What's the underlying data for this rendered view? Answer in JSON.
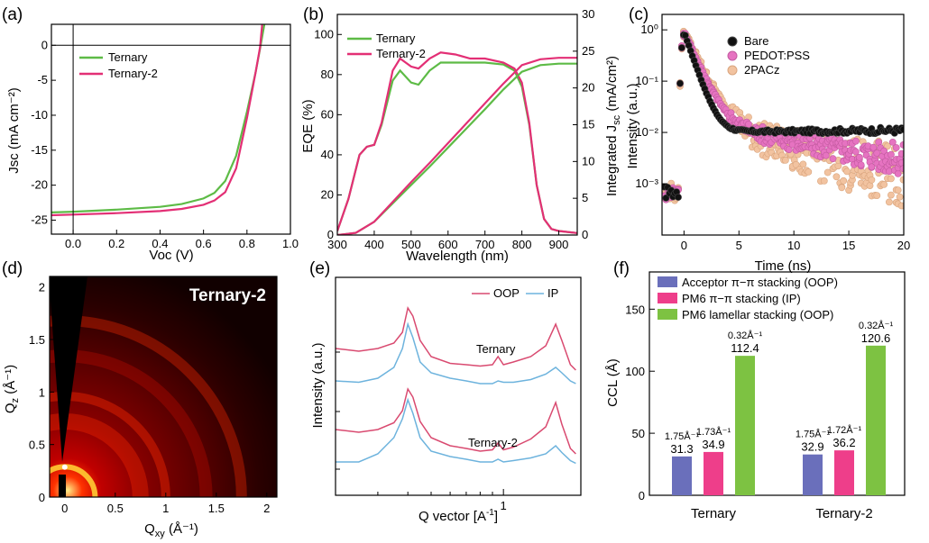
{
  "colors": {
    "green": "#5DBB46",
    "pink": "#E32F75",
    "blue_bar": "#6A6FBB",
    "pink_bar": "#EE3E8A",
    "green_bar": "#7DC242",
    "oop": "#D94A70",
    "ip": "#6DB3DD",
    "bare": "#111111",
    "pedot": "#E673C1",
    "pacz": "#F2C3A0"
  },
  "panels": {
    "a": {
      "tag": "(a)"
    },
    "b": {
      "tag": "(b)"
    },
    "c": {
      "tag": "(c)"
    },
    "d": {
      "tag": "(d)"
    },
    "e": {
      "tag": "(e)"
    },
    "f": {
      "tag": "(f)"
    }
  },
  "chart_data": [
    {
      "panel": "a",
      "type": "line",
      "xlabel": "Voc (V)",
      "ylabel": "Jsc (mA cm⁻²)",
      "xlim": [
        -0.1,
        1.0
      ],
      "ylim": [
        -27,
        3
      ],
      "x_ticks": [
        "0.0",
        "0.2",
        "0.4",
        "0.6",
        "0.8",
        "1.0"
      ],
      "y_ticks": [
        "0",
        "-5",
        "-10",
        "-15",
        "-20",
        "-25"
      ],
      "legend": "top-left",
      "series": [
        {
          "name": "Ternary",
          "x": [
            -0.1,
            0.0,
            0.2,
            0.4,
            0.5,
            0.6,
            0.65,
            0.7,
            0.75,
            0.8,
            0.84,
            0.86,
            0.88
          ],
          "y": [
            -23.9,
            -23.8,
            -23.5,
            -23.1,
            -22.7,
            -21.9,
            -21.1,
            -19.4,
            -15.8,
            -9.5,
            -3.8,
            -0.5,
            3.0
          ]
        },
        {
          "name": "Ternary-2",
          "x": [
            -0.1,
            0.0,
            0.2,
            0.4,
            0.5,
            0.6,
            0.65,
            0.7,
            0.75,
            0.8,
            0.84,
            0.86,
            0.87
          ],
          "y": [
            -24.3,
            -24.2,
            -24.0,
            -23.7,
            -23.4,
            -22.8,
            -22.2,
            -21.0,
            -17.6,
            -10.4,
            -3.8,
            -0.3,
            3.0
          ]
        }
      ]
    },
    {
      "panel": "b",
      "type": "line",
      "xlabel": "Wavelength (nm)",
      "ylabel": "EQE (%)",
      "y2label": "Integrated J",
      "y2label_sub": "sc",
      "y2label_tail": " (mA/cm²)",
      "xlim": [
        300,
        950
      ],
      "ylim": [
        0,
        110
      ],
      "y2lim": [
        0,
        30
      ],
      "x_ticks": [
        "300",
        "400",
        "500",
        "600",
        "700",
        "800",
        "900"
      ],
      "y_ticks": [
        "0",
        "20",
        "40",
        "60",
        "80",
        "100"
      ],
      "y2_ticks": [
        "0",
        "5",
        "10",
        "15",
        "20",
        "25",
        "30"
      ],
      "legend": "top-left",
      "series": [
        {
          "name": "Ternary",
          "axis": "left",
          "x": [
            300,
            330,
            360,
            380,
            400,
            420,
            450,
            470,
            500,
            520,
            550,
            580,
            620,
            660,
            700,
            750,
            780,
            800,
            820,
            840,
            860,
            880,
            900,
            950
          ],
          "y": [
            2,
            18,
            40,
            44,
            45,
            55,
            77,
            82,
            76,
            75,
            82,
            86,
            86,
            86,
            86,
            85,
            82,
            74,
            55,
            25,
            8,
            3,
            2,
            1
          ]
        },
        {
          "name": "Ternary-2",
          "axis": "left",
          "x": [
            300,
            330,
            360,
            380,
            400,
            420,
            450,
            470,
            500,
            520,
            550,
            580,
            620,
            660,
            700,
            750,
            780,
            800,
            820,
            840,
            860,
            880,
            900,
            950
          ],
          "y": [
            2,
            18,
            40,
            44,
            45,
            56,
            82,
            88,
            84,
            83,
            88,
            91,
            90,
            88,
            88,
            86,
            83,
            76,
            56,
            25,
            8,
            3,
            2,
            1
          ]
        },
        {
          "name": "Ternary (integrated)",
          "axis": "right",
          "x": [
            300,
            350,
            400,
            450,
            500,
            550,
            600,
            650,
            700,
            750,
            800,
            850,
            900,
            950
          ],
          "y": [
            0,
            0.3,
            1.8,
            4.3,
            6.8,
            9.3,
            11.9,
            14.5,
            17.1,
            19.8,
            22.2,
            23.1,
            23.3,
            23.3
          ]
        },
        {
          "name": "Ternary-2 (integrated)",
          "axis": "right",
          "x": [
            300,
            350,
            400,
            450,
            500,
            550,
            600,
            650,
            700,
            750,
            800,
            850,
            900,
            950
          ],
          "y": [
            0,
            0.3,
            1.8,
            4.5,
            7.2,
            9.8,
            12.5,
            15.2,
            17.9,
            20.6,
            23.1,
            23.9,
            24.1,
            24.1
          ]
        }
      ]
    },
    {
      "panel": "c",
      "type": "scatter",
      "xlabel": "Time (ns)",
      "ylabel": "Intensity (a.u.)",
      "xlim": [
        -2,
        20
      ],
      "ylim_log": [
        0.0001,
        2
      ],
      "y_scale": "log",
      "x_ticks": [
        "0",
        "5",
        "10",
        "15",
        "20"
      ],
      "y_ticks": [
        "10⁻³",
        "10⁻²",
        "10⁻¹",
        "10⁰"
      ],
      "legend": "top-right",
      "series": [
        {
          "name": "Bare",
          "decay": {
            "a1": 0.9,
            "t1": 0.7,
            "a2": 0.01,
            "floor_end": 0.011
          }
        },
        {
          "name": "PEDOT:PSS",
          "decay": {
            "a1": 0.9,
            "t1": 0.9,
            "a2": 0.018,
            "t2": 8,
            "floor_end": 0.0025
          }
        },
        {
          "name": "2PACz",
          "decay": {
            "a1": 0.9,
            "t1": 1.0,
            "a2": 0.02,
            "t2": 6,
            "floor_end": 0.0012
          }
        }
      ]
    },
    {
      "panel": "d",
      "type": "heatmap",
      "title": "Ternary-2",
      "xlabel": "Q",
      "xlabel_sub": "xy",
      "xlabel_tail": " (Å⁻¹)",
      "ylabel": "Q",
      "ylabel_sub": "z",
      "ylabel_tail": " (Å⁻¹)",
      "xlim": [
        -0.15,
        2.1
      ],
      "ylim": [
        0,
        2.1
      ],
      "x_ticks": [
        "0",
        "0.5",
        "1",
        "1.5",
        "2"
      ],
      "y_ticks": [
        "0",
        "0.5",
        "1",
        "1.5",
        "2"
      ],
      "rings_q": [
        0.3,
        0.75,
        1.0,
        1.4,
        1.75
      ]
    },
    {
      "panel": "e",
      "type": "line",
      "xlabel": "Q vector [A",
      "xlabel_sup": "-1",
      "xlabel_tail": "]",
      "ylabel": "Intensity (a.u.)",
      "x_scale": "log",
      "x_ticks": [
        "1"
      ],
      "legend": "top-right",
      "annotations": [
        "Ternary",
        "Ternary-2"
      ],
      "series": [
        {
          "name": "OOP",
          "group": "Ternary",
          "x": [
            0.2,
            0.25,
            0.3,
            0.35,
            0.38,
            0.4,
            0.42,
            0.45,
            0.5,
            0.6,
            0.7,
            0.8,
            0.9,
            0.95,
            1.0,
            1.1,
            1.3,
            1.5,
            1.65,
            1.75,
            1.9,
            2.0
          ],
          "y": [
            0.62,
            0.6,
            0.62,
            0.66,
            0.74,
            0.92,
            0.86,
            0.68,
            0.56,
            0.51,
            0.5,
            0.49,
            0.5,
            0.56,
            0.5,
            0.52,
            0.56,
            0.64,
            0.8,
            0.68,
            0.5,
            0.46
          ]
        },
        {
          "name": "IP",
          "group": "Ternary",
          "x": [
            0.2,
            0.25,
            0.3,
            0.35,
            0.38,
            0.4,
            0.42,
            0.45,
            0.5,
            0.6,
            0.7,
            0.8,
            0.9,
            0.95,
            1.0,
            1.1,
            1.3,
            1.5,
            1.65,
            1.75,
            1.9,
            2.0
          ],
          "y": [
            0.38,
            0.37,
            0.4,
            0.48,
            0.62,
            0.8,
            0.7,
            0.52,
            0.44,
            0.4,
            0.38,
            0.36,
            0.36,
            0.38,
            0.37,
            0.37,
            0.39,
            0.43,
            0.48,
            0.44,
            0.38,
            0.36
          ]
        },
        {
          "name": "OOP",
          "group": "Ternary-2",
          "x": [
            0.2,
            0.25,
            0.3,
            0.35,
            0.38,
            0.4,
            0.42,
            0.45,
            0.5,
            0.6,
            0.7,
            0.8,
            0.9,
            0.95,
            1.0,
            1.1,
            1.3,
            1.5,
            1.65,
            1.75,
            1.9,
            2.0
          ],
          "y": [
            0.62,
            0.6,
            0.62,
            0.67,
            0.76,
            0.92,
            0.86,
            0.68,
            0.56,
            0.5,
            0.48,
            0.46,
            0.47,
            0.52,
            0.47,
            0.49,
            0.55,
            0.64,
            0.82,
            0.66,
            0.48,
            0.44
          ]
        },
        {
          "name": "IP",
          "group": "Ternary-2",
          "x": [
            0.2,
            0.25,
            0.3,
            0.35,
            0.38,
            0.4,
            0.42,
            0.45,
            0.5,
            0.6,
            0.7,
            0.8,
            0.9,
            0.95,
            1.0,
            1.1,
            1.3,
            1.5,
            1.65,
            1.75,
            1.9,
            2.0
          ],
          "y": [
            0.38,
            0.38,
            0.44,
            0.56,
            0.7,
            0.84,
            0.74,
            0.56,
            0.46,
            0.42,
            0.4,
            0.38,
            0.38,
            0.4,
            0.38,
            0.39,
            0.41,
            0.44,
            0.5,
            0.45,
            0.39,
            0.37
          ]
        }
      ]
    },
    {
      "panel": "f",
      "type": "bar",
      "ylabel": "CCL (Å)",
      "ylim": [
        0,
        180
      ],
      "y_ticks": [
        "0",
        "50",
        "100",
        "150"
      ],
      "categories": [
        "Ternary",
        "Ternary-2"
      ],
      "legend": "top-left",
      "series": [
        {
          "name": "Acceptor π−π stacking (OOP)",
          "values": [
            31.3,
            32.9
          ],
          "peak_labels": [
            "1.75Å⁻¹",
            "1.75Å⁻¹"
          ]
        },
        {
          "name": "PM6 π−π stacking (IP)",
          "values": [
            34.9,
            36.2
          ],
          "peak_labels": [
            "1.73Å⁻¹",
            "1.72Å⁻¹"
          ]
        },
        {
          "name": "PM6 lamellar stacking (OOP)",
          "values": [
            112.4,
            120.6
          ],
          "peak_labels": [
            "0.32Å⁻¹",
            "0.32Å⁻¹"
          ]
        }
      ],
      "value_labels": [
        [
          "31.3",
          "34.9",
          "112.4"
        ],
        [
          "32.9",
          "36.2",
          "120.6"
        ]
      ]
    }
  ]
}
